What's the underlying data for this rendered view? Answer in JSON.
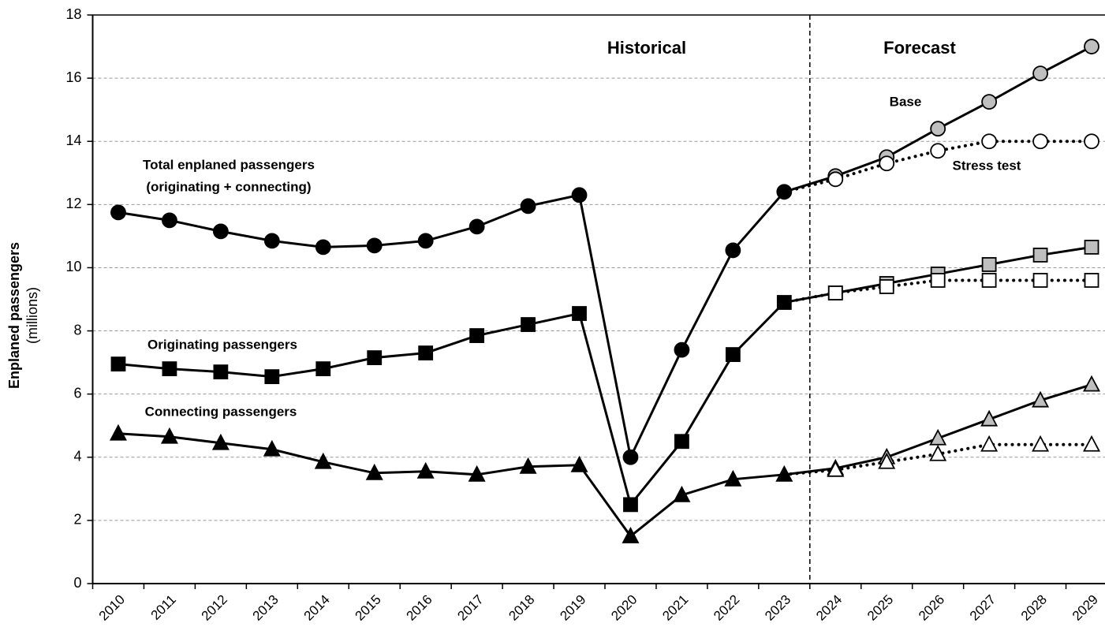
{
  "chart_data": {
    "type": "line",
    "y_label": [
      "Enplaned passengers",
      "(millions)"
    ],
    "annotations": {
      "historical": "Historical",
      "forecast": "Forecast",
      "base": "Base",
      "stress": "Stress test"
    },
    "categories": [
      "2010",
      "2011",
      "2012",
      "2013",
      "2014",
      "2015",
      "2016",
      "2017",
      "2018",
      "2019",
      "2020",
      "2021",
      "2022",
      "2023",
      "2024",
      "2025",
      "2026",
      "2027",
      "2028",
      "2029"
    ],
    "ylim": [
      0,
      18
    ],
    "yticks": [
      0,
      2,
      4,
      6,
      8,
      10,
      12,
      14,
      16,
      18
    ],
    "grid": true,
    "colors": {
      "line": "#000000",
      "history": "#000000",
      "base": "#bfbfbf",
      "stress": "#ffffff"
    },
    "series": [
      {
        "name": [
          "Total enplaned passengers",
          "(originating + connecting)"
        ],
        "marker": "circle",
        "values": [
          11.75,
          11.5,
          11.15,
          10.85,
          10.65,
          10.7,
          10.85,
          11.3,
          11.95,
          12.3,
          4.0,
          7.4,
          10.55,
          12.4,
          null,
          null,
          null,
          null,
          null,
          null
        ],
        "base": [
          null,
          null,
          null,
          null,
          null,
          null,
          null,
          null,
          null,
          null,
          null,
          null,
          null,
          null,
          12.9,
          13.5,
          14.4,
          15.25,
          16.15,
          17.0
        ],
        "stress": [
          null,
          null,
          null,
          null,
          null,
          null,
          null,
          null,
          null,
          null,
          null,
          null,
          null,
          null,
          12.8,
          13.3,
          13.7,
          14.0,
          14.0,
          14.0
        ]
      },
      {
        "name": [
          "Originating passengers"
        ],
        "marker": "square",
        "values": [
          6.95,
          6.8,
          6.7,
          6.55,
          6.8,
          7.15,
          7.3,
          7.85,
          8.2,
          8.55,
          2.5,
          4.5,
          7.25,
          8.9,
          null,
          null,
          null,
          null,
          null,
          null
        ],
        "base": [
          null,
          null,
          null,
          null,
          null,
          null,
          null,
          null,
          null,
          null,
          null,
          null,
          null,
          null,
          9.2,
          9.5,
          9.8,
          10.1,
          10.4,
          10.65
        ],
        "stress": [
          null,
          null,
          null,
          null,
          null,
          null,
          null,
          null,
          null,
          null,
          null,
          null,
          null,
          null,
          9.2,
          9.4,
          9.6,
          9.6,
          9.6,
          9.6
        ]
      },
      {
        "name": [
          "Connecting passengers"
        ],
        "marker": "triangle",
        "values": [
          4.75,
          4.65,
          4.45,
          4.25,
          3.85,
          3.5,
          3.55,
          3.45,
          3.7,
          3.75,
          1.5,
          2.8,
          3.3,
          3.45,
          null,
          null,
          null,
          null,
          null,
          null
        ],
        "base": [
          null,
          null,
          null,
          null,
          null,
          null,
          null,
          null,
          null,
          null,
          null,
          null,
          null,
          null,
          3.65,
          4.0,
          4.6,
          5.2,
          5.8,
          6.3
        ],
        "stress": [
          null,
          null,
          null,
          null,
          null,
          null,
          null,
          null,
          null,
          null,
          null,
          null,
          null,
          null,
          3.6,
          3.85,
          4.1,
          4.4,
          4.4,
          4.4
        ]
      }
    ]
  }
}
